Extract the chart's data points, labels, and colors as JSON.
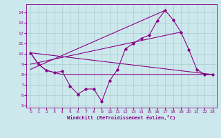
{
  "title": "",
  "xlabel": "Windchill (Refroidissement éolien,°C)",
  "background_color": "#cce8ec",
  "grid_color": "#aacccc",
  "line_color": "#880088",
  "xlim": [
    -0.5,
    23.5
  ],
  "ylim": [
    4.8,
    14.8
  ],
  "yticks": [
    5,
    6,
    7,
    8,
    9,
    10,
    11,
    12,
    13,
    14
  ],
  "xticks": [
    0,
    1,
    2,
    3,
    4,
    5,
    6,
    7,
    8,
    9,
    10,
    11,
    12,
    13,
    14,
    15,
    16,
    17,
    18,
    19,
    20,
    21,
    22,
    23
  ],
  "series1_x": [
    0,
    1,
    2,
    3,
    4,
    5,
    6,
    7,
    8,
    9,
    10,
    11,
    12,
    13,
    14,
    15,
    16,
    17,
    18,
    19,
    20,
    21,
    22,
    23
  ],
  "series1_y": [
    10.1,
    9.0,
    8.4,
    8.2,
    8.3,
    6.9,
    6.1,
    6.6,
    6.6,
    5.4,
    7.4,
    8.5,
    10.5,
    11.0,
    11.5,
    11.8,
    13.2,
    14.2,
    13.3,
    12.1,
    10.4,
    8.5,
    8.0,
    8.0
  ],
  "series2_x": [
    0,
    1,
    2,
    3,
    4,
    5,
    6,
    7,
    8,
    9,
    10,
    11,
    12,
    13,
    14,
    15,
    16,
    17,
    18,
    19,
    20,
    21,
    22,
    23
  ],
  "series2_y": [
    10.1,
    9.0,
    8.4,
    8.2,
    8.0,
    8.0,
    8.0,
    8.0,
    8.0,
    8.0,
    8.0,
    8.0,
    8.0,
    8.0,
    8.0,
    8.0,
    8.0,
    8.0,
    8.0,
    8.0,
    8.0,
    8.0,
    8.0,
    8.0
  ],
  "trend1_x": [
    0,
    17
  ],
  "trend1_y": [
    8.5,
    14.2
  ],
  "trend2_x": [
    0,
    19
  ],
  "trend2_y": [
    9.0,
    12.1
  ],
  "trend3_x": [
    0,
    23
  ],
  "trend3_y": [
    10.1,
    8.0
  ]
}
